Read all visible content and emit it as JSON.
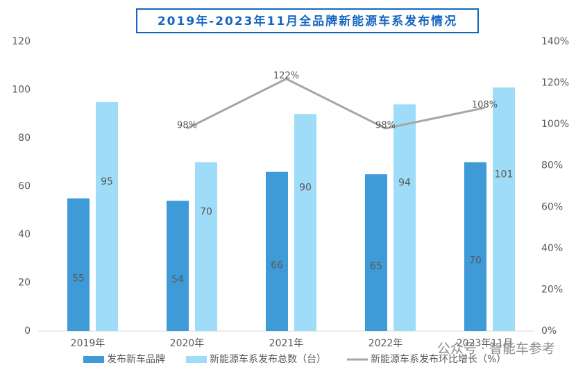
{
  "chart_data": {
    "type": "bar",
    "title": "2019年-2023年11月全品牌新能源车系发布情况",
    "categories": [
      "2019年",
      "2020年",
      "2021年",
      "2022年",
      "2023年11月"
    ],
    "series": [
      {
        "name": "发布新车品牌",
        "color": "#3f9ad8",
        "values": [
          55,
          54,
          66,
          65,
          70
        ]
      },
      {
        "name": "新能源车系发布总数（台）",
        "color": "#9edcf8",
        "values": [
          95,
          70,
          90,
          94,
          101
        ]
      },
      {
        "name": "新能源车系发布环比增长（%）",
        "color": "#a6a6a6",
        "type": "line",
        "axis": "y2",
        "values": [
          null,
          98,
          122,
          98,
          108
        ],
        "value_labels": [
          null,
          "98%",
          "122%",
          "98%",
          "108%"
        ]
      }
    ],
    "ylim": [
      0,
      120
    ],
    "yticks": [
      0,
      20,
      40,
      60,
      80,
      100,
      120
    ],
    "y2lim": [
      0,
      140
    ],
    "y2ticks": [
      {
        "value": 0,
        "label": "0%"
      },
      {
        "value": 20,
        "label": "20%"
      },
      {
        "value": 40,
        "label": "40%"
      },
      {
        "value": 60,
        "label": "60%"
      },
      {
        "value": 80,
        "label": "80%"
      },
      {
        "value": 100,
        "label": "100%"
      },
      {
        "value": 120,
        "label": "120%"
      },
      {
        "value": 140,
        "label": "140%"
      }
    ],
    "grid": false,
    "legend": "bottom",
    "watermark": "公众号 · 智能车参考"
  }
}
